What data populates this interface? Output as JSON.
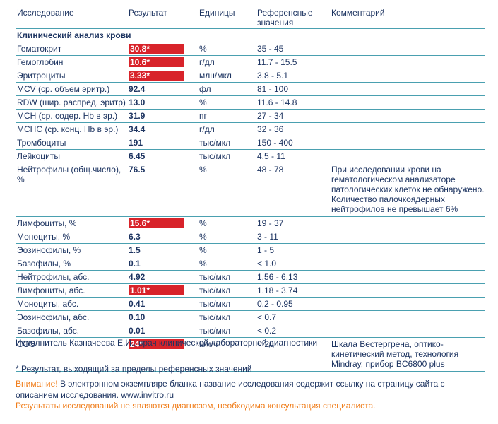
{
  "header": {
    "columns": [
      "Исследование",
      "Результат",
      "Единицы",
      "Референсные значения",
      "Комментарий"
    ]
  },
  "section": {
    "title": "Клинический анализ крови"
  },
  "table": {
    "rows": [
      {
        "name": "Гематокрит",
        "result": "30.8*",
        "flag": true,
        "unit": "%",
        "ref": "35 - 45"
      },
      {
        "name": "Гемоглобин",
        "result": "10.6*",
        "flag": true,
        "unit": "г/дл",
        "ref": "11.7 - 15.5"
      },
      {
        "name": "Эритроциты",
        "result": "3.33*",
        "flag": true,
        "unit": "млн/мкл",
        "ref": "3.8 - 5.1"
      },
      {
        "name": "MCV (ср. объем эритр.)",
        "result": "92.4",
        "flag": false,
        "unit": "фл",
        "ref": "81 - 100"
      },
      {
        "name": "RDW (шир. распред. эритр)",
        "result": "13.0",
        "flag": false,
        "unit": "%",
        "ref": "11.6 - 14.8"
      },
      {
        "name": "MCH (ср. содер. Hb в эр.)",
        "result": "31.9",
        "flag": false,
        "unit": "пг",
        "ref": "27 - 34"
      },
      {
        "name": "MCHC (ср. конц. Hb в эр.)",
        "result": "34.4",
        "flag": false,
        "unit": "г/дл",
        "ref": "32 - 36"
      },
      {
        "name": "Тромбоциты",
        "result": "191",
        "flag": false,
        "unit": "тыс/мкл",
        "ref": "150 - 400"
      },
      {
        "name": "Лейкоциты",
        "result": "6.45",
        "flag": false,
        "unit": "тыс/мкл",
        "ref": "4.5 - 11"
      },
      {
        "name": "Нейтрофилы (общ.число), %",
        "result": "76.5",
        "flag": false,
        "unit": "%",
        "ref": "48 - 78",
        "comment": [
          "При исследовании крови на",
          "гематологическом анализаторе",
          "патологических клеток не обнаружено.",
          "Количество палочкоядерных",
          "нейтрофилов не превышает 6%"
        ]
      },
      {
        "name": "Лимфоциты, %",
        "result": "15.6*",
        "flag": true,
        "unit": "%",
        "ref": "19 - 37"
      },
      {
        "name": "Моноциты, %",
        "result": "6.3",
        "flag": false,
        "unit": "%",
        "ref": "3 - 11"
      },
      {
        "name": "Эозинофилы, %",
        "result": "1.5",
        "flag": false,
        "unit": "%",
        "ref": "1 - 5"
      },
      {
        "name": "Базофилы, %",
        "result": "0.1",
        "flag": false,
        "unit": "%",
        "ref": "< 1.0"
      },
      {
        "name": "Нейтрофилы, абс.",
        "result": "4.92",
        "flag": false,
        "unit": "тыс/мкл",
        "ref": "1.56 - 6.13"
      },
      {
        "name": "Лимфоциты, абс.",
        "result": "1.01*",
        "flag": true,
        "unit": "тыс/мкл",
        "ref": "1.18 - 3.74"
      },
      {
        "name": "Моноциты, абс.",
        "result": "0.41",
        "flag": false,
        "unit": "тыс/мкл",
        "ref": "0.2 - 0.95"
      },
      {
        "name": "Эозинофилы, абс.",
        "result": "0.10",
        "flag": false,
        "unit": "тыс/мкл",
        "ref": "< 0.7"
      },
      {
        "name": "Базофилы, абс.",
        "result": "0.01",
        "flag": false,
        "unit": "тыс/мкл",
        "ref": "< 0.2"
      },
      {
        "name": "СОЭ",
        "result": "24*",
        "flag": true,
        "unit": "мм/ч",
        "ref": "< 20",
        "comment": [
          "Шкала Вестергрена, оптико-",
          "кинетический метод, технология",
          "Mindray, прибор BC6800 plus"
        ]
      }
    ]
  },
  "executor": "Исполнитель Казначеева  Е.И., врач клинической лабораторной диагностики",
  "footnote": "* Результат, выходящий за пределы референсных значений",
  "warning": {
    "label": "Внимание!",
    "text": "В электронном экземпляре бланка название исследования содержит ссылку на страницу сайта с описанием исследования. www.invitro.ru"
  },
  "disclaimer": "Результаты исследований не являются диагнозом, необходима консультация специалиста."
}
